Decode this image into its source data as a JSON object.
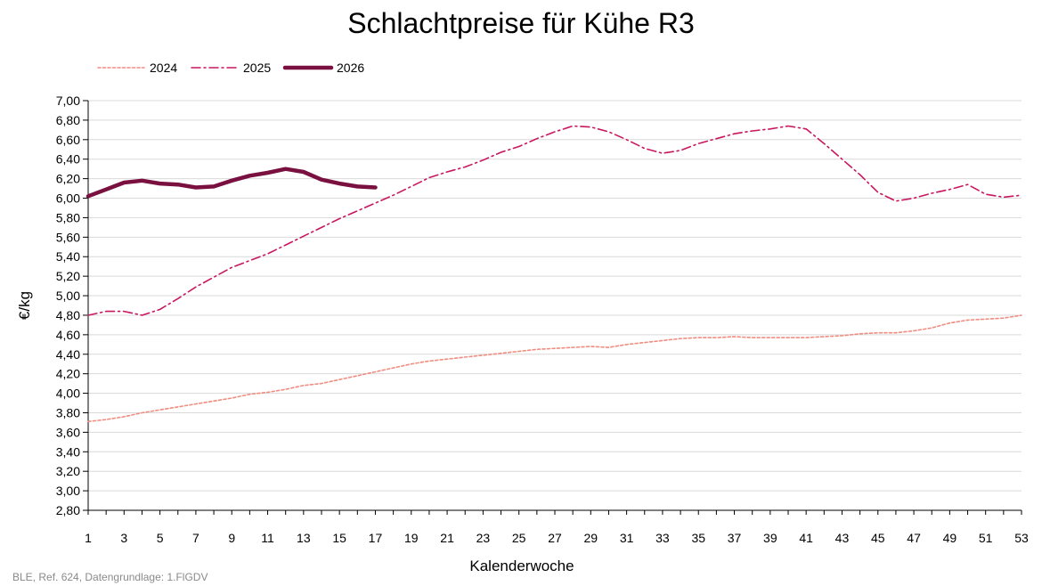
{
  "chart_data": {
    "type": "line",
    "title": "Schlachtpreise für Kühe R3",
    "xlabel": "Kalenderwoche",
    "ylabel": "€/kg",
    "xlim": [
      1,
      53
    ],
    "ylim": [
      2.8,
      7.0
    ],
    "x_ticks": [
      1,
      3,
      5,
      7,
      9,
      11,
      13,
      15,
      17,
      19,
      21,
      23,
      25,
      27,
      29,
      31,
      33,
      35,
      37,
      39,
      41,
      43,
      45,
      47,
      49,
      51,
      53
    ],
    "y_ticks": [
      "2,80",
      "3,00",
      "3,20",
      "3,40",
      "3,60",
      "3,80",
      "4,00",
      "4,20",
      "4,40",
      "4,60",
      "4,80",
      "5,00",
      "5,20",
      "5,40",
      "5,60",
      "5,80",
      "6,00",
      "6,20",
      "6,40",
      "6,60",
      "6,80",
      "7,00"
    ],
    "grid": true,
    "legend_position": "top-left",
    "series": [
      {
        "name": "2024",
        "color": "#f08c80",
        "style": "dotted",
        "values": [
          3.71,
          3.73,
          3.76,
          3.8,
          3.83,
          3.86,
          3.89,
          3.92,
          3.95,
          3.99,
          4.01,
          4.04,
          4.08,
          4.1,
          4.14,
          4.18,
          4.22,
          4.26,
          4.3,
          4.33,
          4.35,
          4.37,
          4.39,
          4.41,
          4.43,
          4.45,
          4.46,
          4.47,
          4.48,
          4.47,
          4.5,
          4.52,
          4.54,
          4.56,
          4.57,
          4.57,
          4.58,
          4.57,
          4.57,
          4.57,
          4.57,
          4.58,
          4.59,
          4.61,
          4.62,
          4.62,
          4.64,
          4.67,
          4.72,
          4.75,
          4.76,
          4.77,
          4.8
        ]
      },
      {
        "name": "2025",
        "color": "#c8175f",
        "style": "dashdot",
        "values": [
          4.8,
          4.84,
          4.84,
          4.8,
          4.86,
          4.97,
          5.09,
          5.19,
          5.29,
          5.36,
          5.43,
          5.52,
          5.61,
          5.7,
          5.79,
          5.87,
          5.95,
          6.03,
          6.12,
          6.21,
          6.27,
          6.32,
          6.39,
          6.47,
          6.53,
          6.61,
          6.68,
          6.74,
          6.73,
          6.68,
          6.6,
          6.51,
          6.46,
          6.49,
          6.56,
          6.61,
          6.66,
          6.69,
          6.71,
          6.74,
          6.71,
          6.56,
          6.4,
          6.24,
          6.06,
          5.97,
          6.0,
          6.05,
          6.09,
          6.14,
          6.04,
          6.01,
          6.03
        ]
      },
      {
        "name": "2026",
        "color": "#7a1040",
        "style": "solid",
        "values": [
          6.02,
          6.09,
          6.16,
          6.18,
          6.15,
          6.14,
          6.11,
          6.12,
          6.18,
          6.23,
          6.26,
          6.3,
          6.27,
          6.19,
          6.15,
          6.12,
          6.11
        ]
      }
    ]
  },
  "footer": {
    "source": "BLE, Ref. 624, Datengrundlage: 1.FlGDV"
  }
}
